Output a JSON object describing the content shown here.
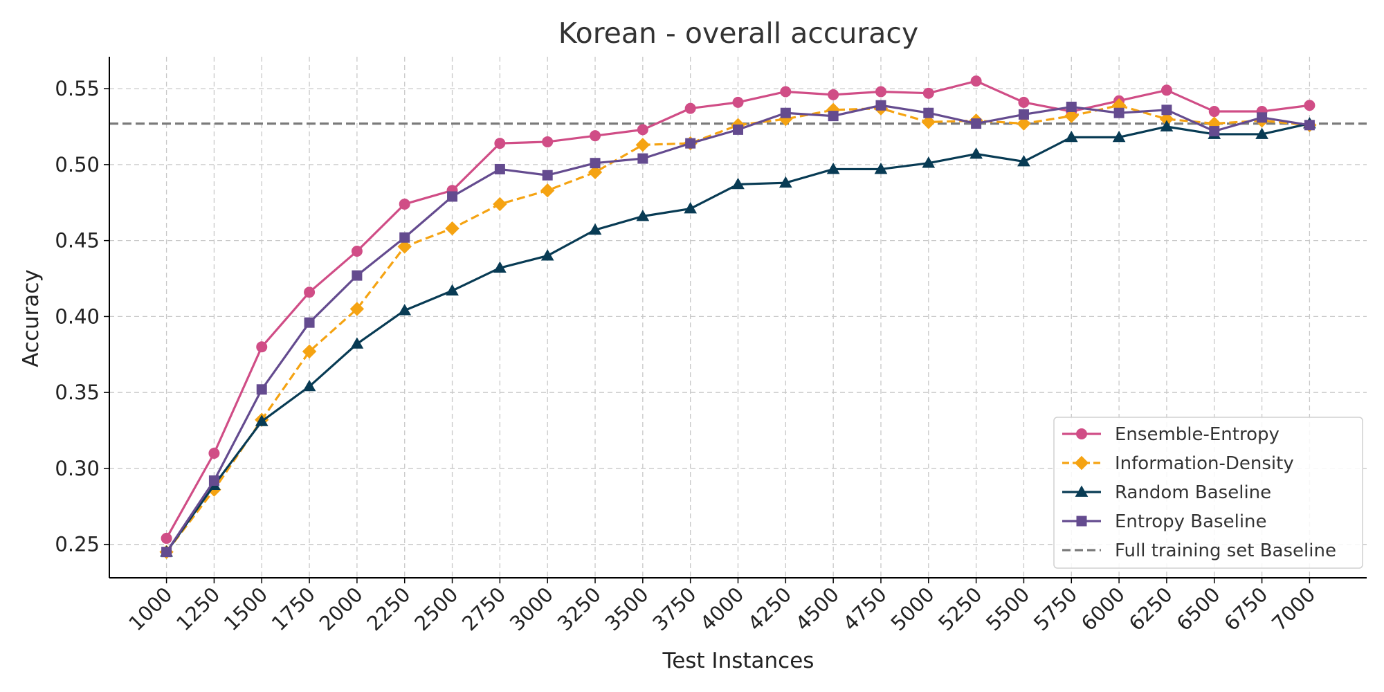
{
  "chart_data": {
    "type": "line",
    "title": "Korean - overall accuracy",
    "xlabel": "Test Instances",
    "ylabel": "Accuracy",
    "x": [
      1000,
      1250,
      1500,
      1750,
      2000,
      2250,
      2500,
      2750,
      3000,
      3250,
      3500,
      3750,
      4000,
      4250,
      4500,
      4750,
      5000,
      5250,
      5500,
      5750,
      6000,
      6250,
      6500,
      6750,
      7000
    ],
    "x_tick_labels": [
      "1000",
      "1250",
      "1500",
      "1750",
      "2000",
      "2250",
      "2500",
      "2750",
      "3000",
      "3250",
      "3500",
      "3750",
      "4000",
      "4250",
      "4500",
      "4750",
      "5000",
      "5250",
      "5500",
      "5750",
      "6000",
      "6250",
      "6500",
      "6750",
      "7000"
    ],
    "xlim": [
      700,
      7300
    ],
    "ylim": [
      0.228,
      0.571
    ],
    "y_ticks": [
      0.25,
      0.3,
      0.35,
      0.4,
      0.45,
      0.5,
      0.55
    ],
    "y_tick_labels": [
      "0.25",
      "0.30",
      "0.35",
      "0.40",
      "0.45",
      "0.50",
      "0.55"
    ],
    "grid": true,
    "legend_position": "bottom-right",
    "series": [
      {
        "name": "Ensemble-Entropy",
        "color": "#d04d86",
        "marker": "circle",
        "line_style": "solid",
        "values": [
          0.254,
          0.31,
          0.38,
          0.416,
          0.443,
          0.474,
          0.483,
          0.514,
          0.515,
          0.519,
          0.523,
          0.537,
          0.541,
          0.548,
          0.546,
          0.548,
          0.547,
          0.555,
          0.541,
          0.535,
          0.542,
          0.549,
          0.535,
          0.535,
          0.539
        ]
      },
      {
        "name": "Information-Density",
        "color": "#f5a312",
        "marker": "diamond",
        "line_style": "dashed",
        "values": [
          0.245,
          0.286,
          0.332,
          0.377,
          0.405,
          0.446,
          0.458,
          0.474,
          0.483,
          0.495,
          0.513,
          0.514,
          0.526,
          0.53,
          0.536,
          0.537,
          0.528,
          0.529,
          0.527,
          0.532,
          0.539,
          0.53,
          0.527,
          0.529,
          0.526
        ]
      },
      {
        "name": "Random Baseline",
        "color": "#083b54",
        "marker": "triangle",
        "line_style": "solid",
        "values": [
          0.245,
          0.289,
          0.331,
          0.354,
          0.382,
          0.404,
          0.417,
          0.432,
          0.44,
          0.457,
          0.466,
          0.471,
          0.487,
          0.488,
          0.497,
          0.497,
          0.501,
          0.507,
          0.502,
          0.518,
          0.518,
          0.525,
          0.52,
          0.52,
          0.527
        ]
      },
      {
        "name": "Entropy Baseline",
        "color": "#644b8f",
        "marker": "square",
        "line_style": "solid",
        "values": [
          0.245,
          0.292,
          0.352,
          0.396,
          0.427,
          0.452,
          0.479,
          0.497,
          0.493,
          0.501,
          0.504,
          0.514,
          0.523,
          0.534,
          0.532,
          0.539,
          0.534,
          0.527,
          0.533,
          0.538,
          0.534,
          0.536,
          0.522,
          0.531,
          0.526
        ]
      }
    ],
    "reference_line": {
      "name": "Full training set Baseline",
      "value": 0.527,
      "color": "#7a7a7a",
      "line_style": "dashed"
    }
  }
}
